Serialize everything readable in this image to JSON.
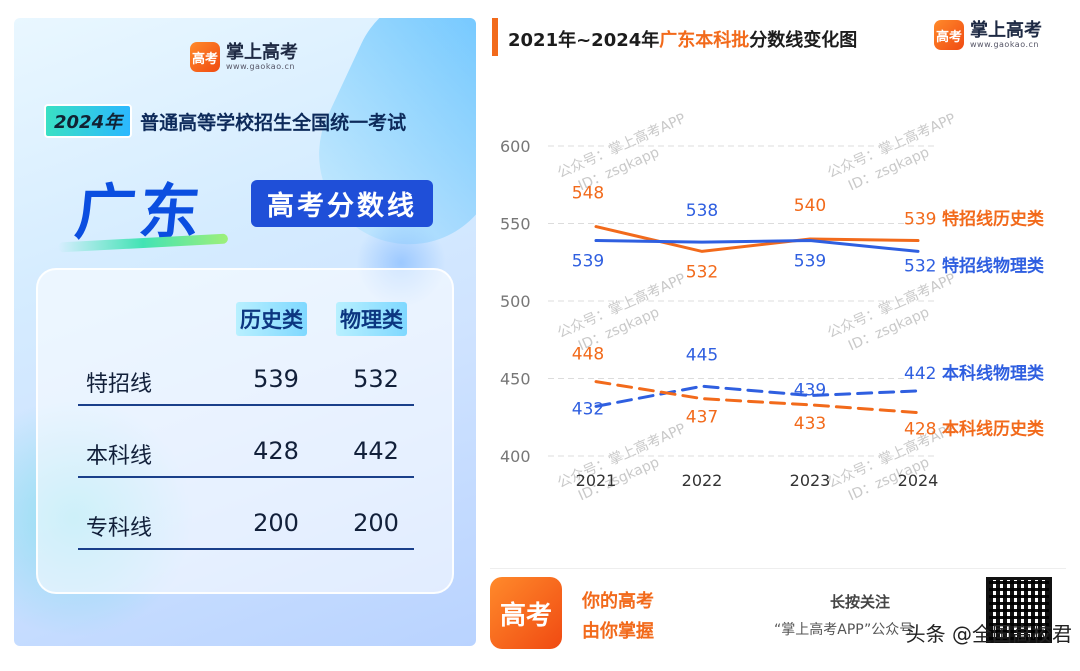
{
  "left_card": {
    "brand_name": "掌上高考",
    "brand_url": "www.gaokao.cn",
    "logo_text": "高考",
    "year_badge": "2024年",
    "exam_title": "普通高等学校招生全国统一考试",
    "province": "广东",
    "score_tag": "高考分数线",
    "columns": [
      "历史类",
      "物理类"
    ],
    "rows": [
      {
        "label": "特招线",
        "history": "539",
        "physics": "532"
      },
      {
        "label": "本科线",
        "history": "428",
        "physics": "442"
      },
      {
        "label": "专科线",
        "history": "200",
        "physics": "200"
      }
    ]
  },
  "right_card": {
    "title_prefix": "2021年~2024年",
    "title_highlight": "广东本科批",
    "title_suffix": "分数线变化图",
    "brand_name": "掌上高考",
    "brand_url": "www.gaokao.cn",
    "logo_text": "高考",
    "watermark_lines": [
      "公众号：掌上高考APP",
      "ID：zsgkapp"
    ],
    "footer": {
      "slogan_line1": "你的高考",
      "slogan_line2": "由你掌握",
      "follow": "长按关注",
      "follow_name": "“掌上高考APP”公众号",
      "logo_text": "高考"
    }
  },
  "source_watermark": "头条 @全国高校君",
  "colors": {
    "orange": "#f26a1b",
    "blue": "#2f5fe0",
    "navy": "#1a3f8a"
  },
  "chart_data": {
    "type": "line",
    "title": "2021年~2024年广东本科批分数线变化图",
    "x": [
      "2021",
      "2022",
      "2023",
      "2024"
    ],
    "y_ticks": [
      "600",
      "550",
      "500",
      "450",
      "400"
    ],
    "ylim": [
      400,
      600
    ],
    "grid": true,
    "series": [
      {
        "name": "特招线历史类",
        "values": [
          548,
          532,
          540,
          539
        ],
        "color": "#f26a1b",
        "dash": false,
        "labels": [
          "548",
          "532",
          "540",
          "539"
        ]
      },
      {
        "name": "特招线物理类",
        "values": [
          539,
          538,
          539,
          532
        ],
        "color": "#2f5fe0",
        "dash": false,
        "labels": [
          "539",
          "538",
          "539",
          "532"
        ]
      },
      {
        "name": "本科线物理类",
        "values": [
          432,
          445,
          439,
          442
        ],
        "color": "#2f5fe0",
        "dash": true,
        "labels": [
          "432",
          "445",
          "439",
          "442"
        ]
      },
      {
        "name": "本科线历史类",
        "values": [
          448,
          437,
          433,
          428
        ],
        "color": "#f26a1b",
        "dash": true,
        "labels": [
          "448",
          "437",
          "433",
          "428"
        ]
      }
    ]
  }
}
